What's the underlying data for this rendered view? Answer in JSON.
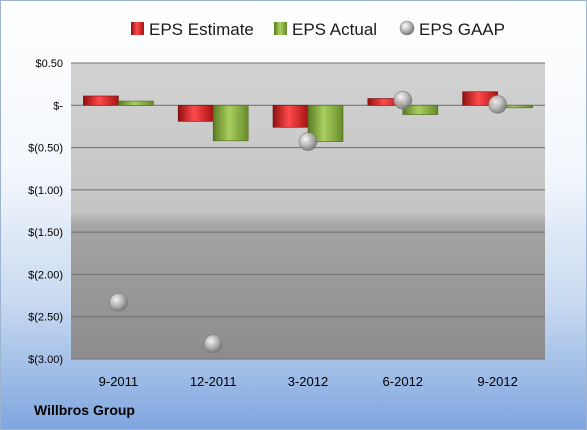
{
  "company": "Willbros Group",
  "chart_data": {
    "type": "bar",
    "categories": [
      "9-2011",
      "12-2011",
      "3-2012",
      "6-2012",
      "9-2012"
    ],
    "series": [
      {
        "name": "EPS Estimate",
        "kind": "bar",
        "color": "#c0161c",
        "values": [
          0.11,
          -0.19,
          -0.26,
          0.08,
          0.16
        ]
      },
      {
        "name": "EPS Actual",
        "kind": "bar",
        "color": "#7fa13a",
        "values": [
          0.05,
          -0.42,
          -0.43,
          -0.11,
          -0.03
        ]
      },
      {
        "name": "EPS GAAP",
        "kind": "point",
        "color": "#a9a9a9",
        "values": [
          -2.33,
          -2.82,
          -0.43,
          0.06,
          0.01
        ]
      }
    ],
    "ylim": [
      -3.0,
      0.5
    ],
    "yticks": [
      0.5,
      0,
      -0.5,
      -1.0,
      -1.5,
      -2.0,
      -2.5,
      -3.0
    ],
    "ytick_labels": [
      "$0.50",
      "$-",
      "$(0.50)",
      "$(1.00)",
      "$(1.50)",
      "$(2.00)",
      "$(2.50)",
      "$(3.00)"
    ],
    "grid": true,
    "legend_position": "top",
    "title": "",
    "xlabel": "",
    "ylabel": ""
  }
}
